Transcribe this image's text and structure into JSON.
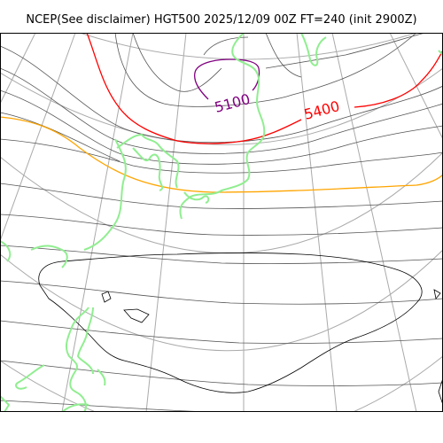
{
  "title": "NCEP(See disclaimer) HGT500 2025/12/09 00Z FT=240 (init 2900Z)",
  "contour_labels": [
    {
      "text": "5100",
      "color": "#800080"
    },
    {
      "text": "5400",
      "color": "#ff0000"
    }
  ],
  "colors": {
    "contour_regular": "#555555",
    "contour_5100": "#800080",
    "contour_5400": "#ff0000",
    "contour_5700": "#ffa500",
    "graticule": "#aaaaaa",
    "coastline_japan": "#90ee90",
    "coastline_other": "#000000",
    "frame": "#000000"
  }
}
